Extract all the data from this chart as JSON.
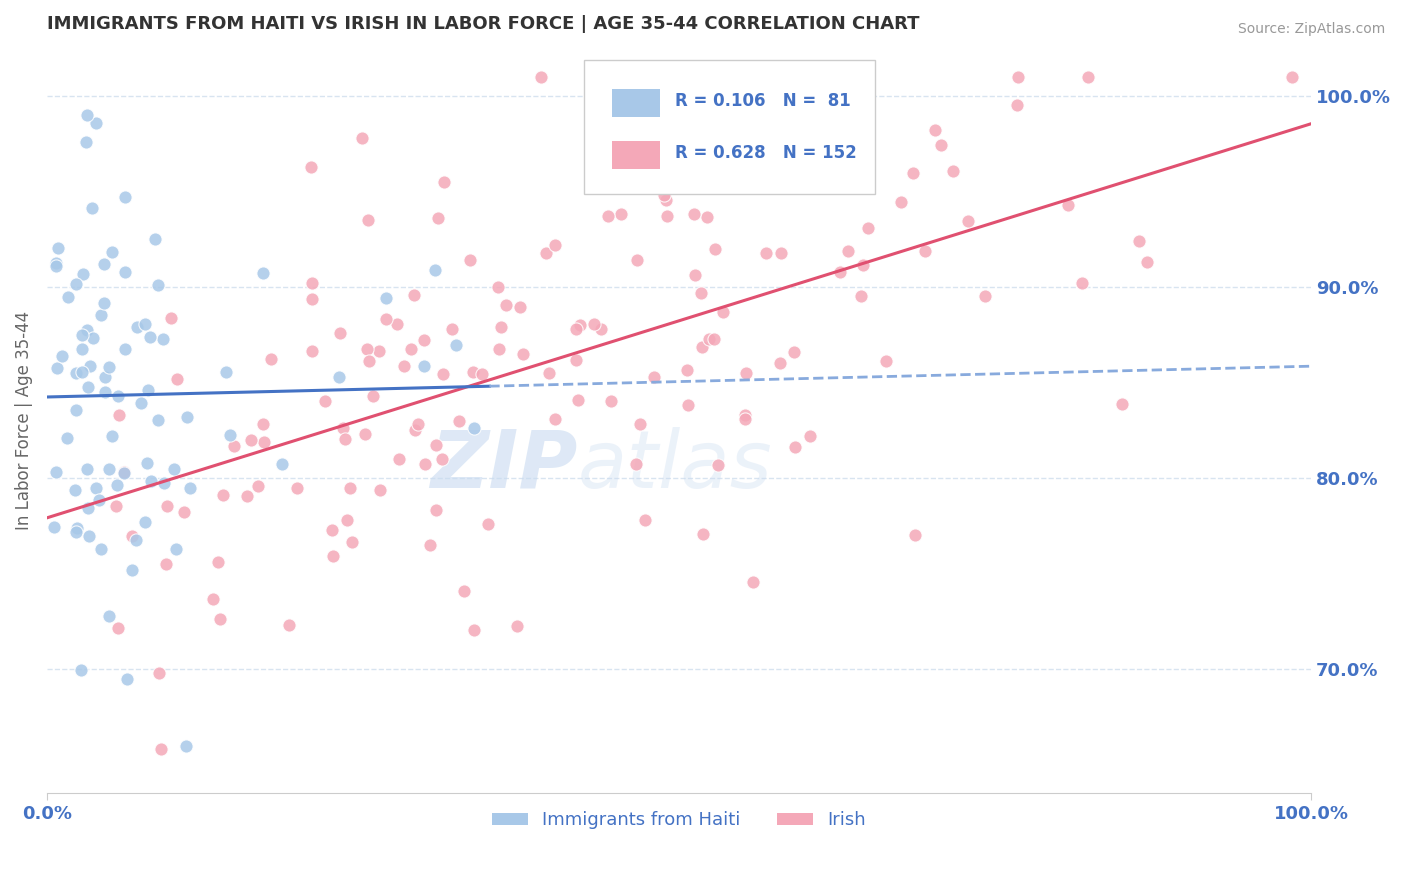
{
  "title": "IMMIGRANTS FROM HAITI VS IRISH IN LABOR FORCE | AGE 35-44 CORRELATION CHART",
  "source": "Source: ZipAtlas.com",
  "ylabel": "In Labor Force | Age 35-44",
  "ytick_labels": [
    "70.0%",
    "80.0%",
    "90.0%",
    "100.0%"
  ],
  "ytick_values": [
    0.7,
    0.8,
    0.9,
    1.0
  ],
  "xmin": 0.0,
  "xmax": 1.0,
  "ymin": 0.635,
  "ymax": 1.025,
  "haiti_color": "#a8c8e8",
  "irish_color": "#f4a8b8",
  "haiti_R": 0.106,
  "haiti_N": 81,
  "irish_R": 0.628,
  "irish_N": 152,
  "haiti_trend_color": "#4472c4",
  "haiti_trend_dash_color": "#88aadd",
  "irish_trend_color": "#e05070",
  "grid_color": "#d8e4f0",
  "axis_label_color": "#4472c4",
  "title_color": "#333333",
  "watermark": "ZIPatlas",
  "legend_R_haiti": "R = 0.106",
  "legend_N_haiti": "N =  81",
  "legend_R_irish": "R = 0.628",
  "legend_N_irish": "N = 152"
}
